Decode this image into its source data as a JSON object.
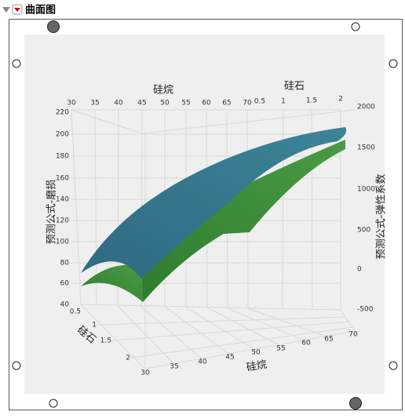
{
  "header": {
    "title": "曲面图"
  },
  "plot": {
    "top_x": {
      "label": "硅烷",
      "ticks": [
        "30",
        "35",
        "40",
        "45",
        "50",
        "55",
        "60",
        "65",
        "70"
      ]
    },
    "top_z": {
      "label": "硅石",
      "ticks": [
        "0.5",
        "1",
        "1.5",
        "2"
      ]
    },
    "left_y": {
      "label": "预测公式-磨损",
      "ticks": [
        "220",
        "200",
        "180",
        "160",
        "140",
        "120",
        "100",
        "80",
        "60",
        "40"
      ]
    },
    "right_y": {
      "label": "预测公式-弹性系数",
      "ticks": [
        "2000",
        "1500",
        "1000",
        "500",
        "0",
        "-500"
      ]
    },
    "bottom_z": {
      "label": "硅石",
      "ticks": [
        "0.5",
        "1",
        "1.5",
        "2"
      ]
    },
    "bottom_x": {
      "label": "硅烷",
      "ticks": [
        "30",
        "35",
        "40",
        "45",
        "50",
        "55",
        "60",
        "65",
        "70"
      ]
    }
  }
}
